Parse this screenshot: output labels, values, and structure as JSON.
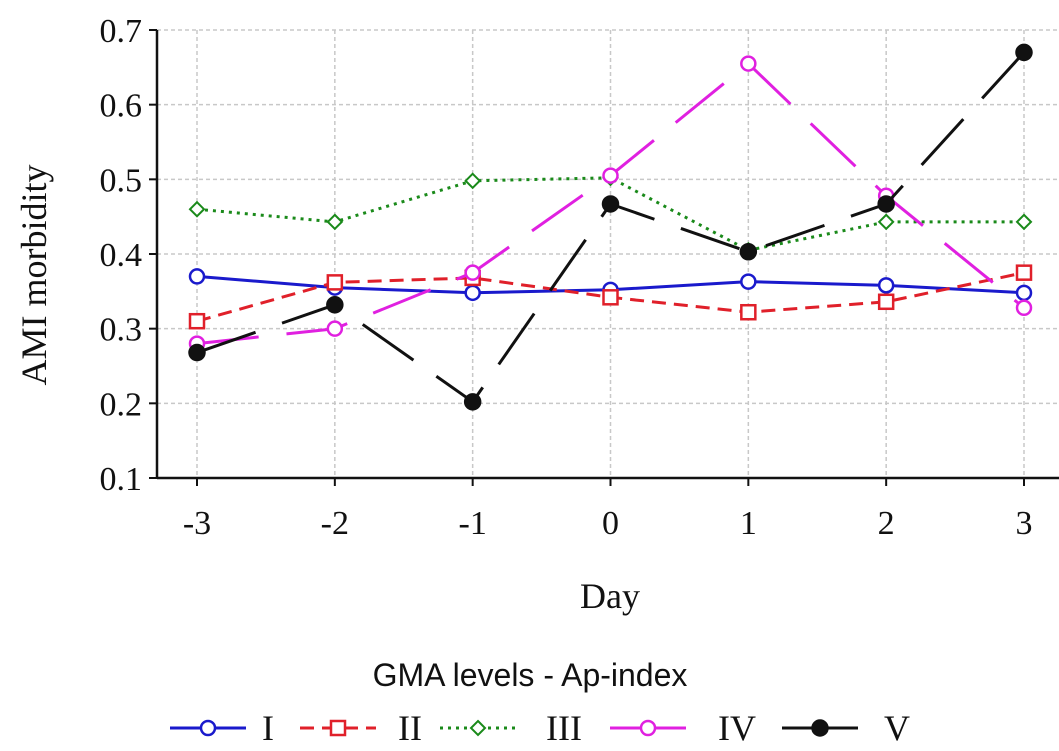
{
  "chart_data": {
    "type": "line",
    "x": [
      -3,
      -2,
      -1,
      0,
      1,
      2,
      3
    ],
    "xlabel": "Day",
    "ylabel": "AMI morbidity",
    "xlim": [
      -3,
      3
    ],
    "ylim": [
      0.1,
      0.7
    ],
    "xticks": [
      "-3",
      "-2",
      "-1",
      "0",
      "1",
      "2",
      "3"
    ],
    "yticks": [
      "0.1",
      "0.2",
      "0.3",
      "0.4",
      "0.5",
      "0.6",
      "0.7"
    ],
    "grid": true,
    "legend_title": "GMA levels - Ap-index",
    "legend_position": "bottom",
    "series": [
      {
        "name": "I",
        "color": "#1a1acc",
        "dash": "solid",
        "marker": "circle-open",
        "values": [
          0.37,
          0.355,
          0.348,
          0.352,
          0.363,
          0.358,
          0.348
        ]
      },
      {
        "name": "II",
        "color": "#e0202a",
        "dash": "dashed",
        "marker": "square-open",
        "values": [
          0.31,
          0.362,
          0.368,
          0.342,
          0.322,
          0.336,
          0.375
        ]
      },
      {
        "name": "III",
        "color": "#1a8a1a",
        "dash": "dotted",
        "marker": "diamond-open",
        "values": [
          0.46,
          0.443,
          0.498,
          0.502,
          0.405,
          0.443,
          0.443
        ]
      },
      {
        "name": "IV",
        "color": "#e020e0",
        "dash": "longdash",
        "marker": "circle-open",
        "values": [
          0.28,
          0.3,
          0.375,
          0.505,
          0.655,
          0.478,
          0.328
        ]
      },
      {
        "name": "V",
        "color": "#111111",
        "dash": "longdash",
        "marker": "circle-filled",
        "values": [
          0.268,
          0.332,
          0.202,
          0.467,
          0.403,
          0.467,
          0.67
        ]
      }
    ]
  }
}
